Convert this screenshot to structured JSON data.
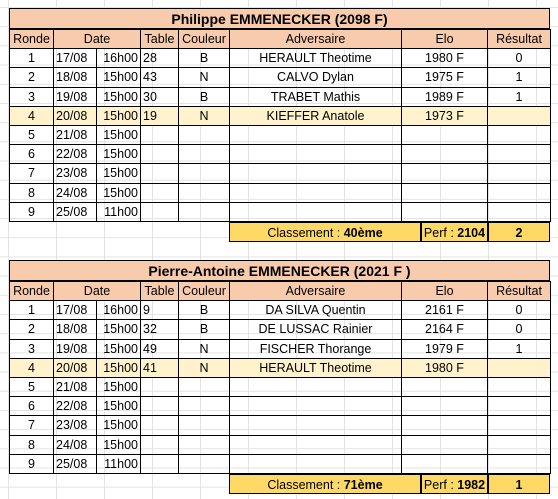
{
  "headers": [
    "Ronde",
    "Date",
    "Table",
    "Couleur",
    "Adversaire",
    "Elo",
    "Résultat"
  ],
  "players": [
    {
      "title": "Philippe EMMENECKER (2098 F)",
      "rows": [
        {
          "ronde": "1",
          "date": "17/08",
          "heure": "16h00",
          "table": "28",
          "couleur": "B",
          "adversaire": "HERAULT Theotime",
          "elo": "1980 F",
          "resultat": "0"
        },
        {
          "ronde": "2",
          "date": "18/08",
          "heure": "15h00",
          "table": "43",
          "couleur": "N",
          "adversaire": "CALVO Dylan",
          "elo": "1975 F",
          "resultat": "1"
        },
        {
          "ronde": "3",
          "date": "19/08",
          "heure": "15h00",
          "table": "30",
          "couleur": "B",
          "adversaire": "TRABET Mathis",
          "elo": "1989 F",
          "resultat": "1"
        },
        {
          "ronde": "4",
          "date": "20/08",
          "heure": "15h00",
          "table": "19",
          "couleur": "N",
          "adversaire": "KIEFFER Anatole",
          "elo": "1973 F",
          "resultat": ""
        },
        {
          "ronde": "5",
          "date": "21/08",
          "heure": "15h00",
          "table": "",
          "couleur": "",
          "adversaire": "",
          "elo": "",
          "resultat": ""
        },
        {
          "ronde": "6",
          "date": "22/08",
          "heure": "15h00",
          "table": "",
          "couleur": "",
          "adversaire": "",
          "elo": "",
          "resultat": ""
        },
        {
          "ronde": "7",
          "date": "23/08",
          "heure": "15h00",
          "table": "",
          "couleur": "",
          "adversaire": "",
          "elo": "",
          "resultat": ""
        },
        {
          "ronde": "8",
          "date": "24/08",
          "heure": "15h00",
          "table": "",
          "couleur": "",
          "adversaire": "",
          "elo": "",
          "resultat": ""
        },
        {
          "ronde": "9",
          "date": "25/08",
          "heure": "11h00",
          "table": "",
          "couleur": "",
          "adversaire": "",
          "elo": "",
          "resultat": ""
        }
      ],
      "summary": {
        "classement_label": "Classement : ",
        "classement_value": "40ème",
        "perf_label": "Perf : ",
        "perf_value": "2104",
        "score": "2"
      }
    },
    {
      "title": "Pierre-Antoine EMMENECKER (2021 F )",
      "rows": [
        {
          "ronde": "1",
          "date": "17/08",
          "heure": "16h00",
          "table": "9",
          "couleur": "B",
          "adversaire": "DA SILVA Quentin",
          "elo": "2161 F",
          "resultat": "0"
        },
        {
          "ronde": "2",
          "date": "18/08",
          "heure": "15h00",
          "table": "32",
          "couleur": "B",
          "adversaire": "DE LUSSAC Rainier",
          "elo": "2164 F",
          "resultat": "0"
        },
        {
          "ronde": "3",
          "date": "19/08",
          "heure": "15h00",
          "table": "49",
          "couleur": "N",
          "adversaire": "FISCHER Thorange",
          "elo": "1979 F",
          "resultat": "1"
        },
        {
          "ronde": "4",
          "date": "20/08",
          "heure": "15h00",
          "table": "41",
          "couleur": "N",
          "adversaire": "HERAULT Theotime",
          "elo": "1980 F",
          "resultat": ""
        },
        {
          "ronde": "5",
          "date": "21/08",
          "heure": "15h00",
          "table": "",
          "couleur": "",
          "adversaire": "",
          "elo": "",
          "resultat": ""
        },
        {
          "ronde": "6",
          "date": "22/08",
          "heure": "15h00",
          "table": "",
          "couleur": "",
          "adversaire": "",
          "elo": "",
          "resultat": ""
        },
        {
          "ronde": "7",
          "date": "23/08",
          "heure": "15h00",
          "table": "",
          "couleur": "",
          "adversaire": "",
          "elo": "",
          "resultat": ""
        },
        {
          "ronde": "8",
          "date": "24/08",
          "heure": "15h00",
          "table": "",
          "couleur": "",
          "adversaire": "",
          "elo": "",
          "resultat": ""
        },
        {
          "ronde": "9",
          "date": "25/08",
          "heure": "11h00",
          "table": "",
          "couleur": "",
          "adversaire": "",
          "elo": "",
          "resultat": ""
        }
      ],
      "summary": {
        "classement_label": "Classement : ",
        "classement_value": "71ème",
        "perf_label": "Perf : ",
        "perf_value": "1982",
        "score": "1"
      }
    }
  ],
  "current_round": "4",
  "colors": {
    "header_bg": "#f8cbad",
    "current_round_bg": "#fff2cc",
    "summary_bg": "#ffd966",
    "grid_line": "#e3e3e3"
  }
}
